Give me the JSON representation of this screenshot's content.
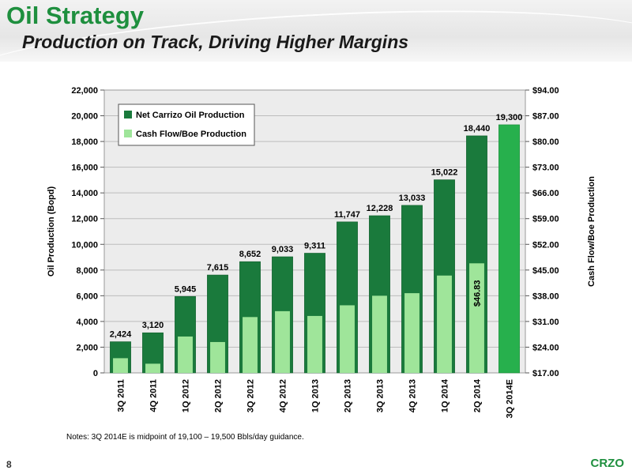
{
  "header": {
    "title": "Oil Strategy",
    "subtitle": "Production on Track, Driving Higher Margins"
  },
  "notes": "Notes: 3Q 2014E is midpoint of 19,100 – 19,500 Bbls/day guidance.",
  "slide_number": "8",
  "brand": "CRZO",
  "colors": {
    "title": "#1e8f3e",
    "dark_bar": "#1a7a3c",
    "light_bar": "#9fe59a",
    "estimate_bar": "#27b04d",
    "plot_bg": "#ececec"
  },
  "chart_data": {
    "type": "bar",
    "categories": [
      "3Q 2011",
      "4Q 2011",
      "1Q 2012",
      "2Q 2012",
      "3Q 2012",
      "4Q 2012",
      "1Q 2013",
      "2Q 2013",
      "3Q 2013",
      "4Q 2013",
      "1Q 2014",
      "2Q 2014",
      "3Q 2014E"
    ],
    "series": [
      {
        "name": "Net Carrizo Oil Production",
        "axis": "left",
        "values": [
          2424,
          3120,
          5945,
          7615,
          8652,
          9033,
          9311,
          11747,
          12228,
          13033,
          15022,
          18440,
          19300
        ],
        "labels": [
          "2,424",
          "3,120",
          "5,945",
          "7,615",
          "8,652",
          "9,033",
          "9,311",
          "11,747",
          "12,228",
          "13,033",
          "15,022",
          "18,440",
          "19,300"
        ]
      },
      {
        "name": "Cash Flow/Boe Production",
        "axis": "right",
        "values": [
          21.0,
          19.5,
          26.9,
          25.4,
          32.2,
          33.8,
          32.5,
          35.4,
          38.0,
          38.7,
          43.5,
          46.83,
          null
        ],
        "labels": [
          "",
          "",
          "",
          "",
          "",
          "",
          "",
          "",
          "",
          "",
          "",
          "$46.83",
          ""
        ]
      }
    ],
    "ylabel": "Oil Production (Bopd)",
    "ylabel_right": "Cash Flow/Boe Production",
    "ylim": [
      0,
      22000
    ],
    "yticks": [
      "0",
      "2,000",
      "4,000",
      "6,000",
      "8,000",
      "10,000",
      "12,000",
      "14,000",
      "16,000",
      "18,000",
      "20,000",
      "22,000"
    ],
    "ylim_right": [
      17,
      94
    ],
    "yticks_right": [
      "$17.00",
      "$24.00",
      "$31.00",
      "$38.00",
      "$45.00",
      "$52.00",
      "$59.00",
      "$66.00",
      "$73.00",
      "$80.00",
      "$87.00",
      "$94.00"
    ],
    "legend": "top-left",
    "grid": true
  }
}
